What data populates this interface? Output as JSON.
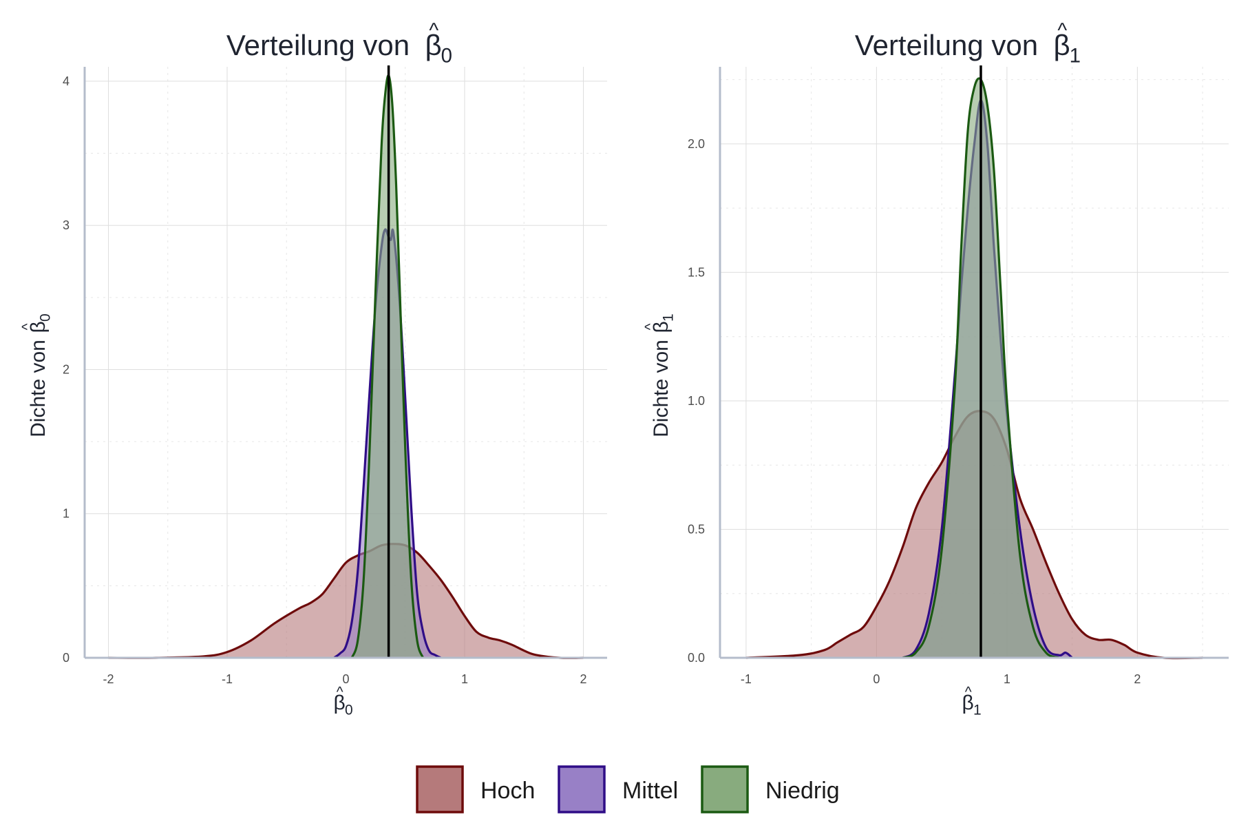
{
  "legend": {
    "items": [
      {
        "label": "Hoch",
        "fill": "#b57a7b",
        "stroke": "#6e0b0b"
      },
      {
        "label": "Mittel",
        "fill": "#9880c6",
        "stroke": "#2f0d87"
      },
      {
        "label": "Niedrig",
        "fill": "#88ab7e",
        "stroke": "#1b5a12"
      }
    ]
  },
  "chart_data": [
    {
      "type": "area",
      "title": "Verteilung von β̂0",
      "title_text": "Verteilung von ",
      "xlabel": "β̂0",
      "ylabel": "Dichte von β̂0",
      "ylabel_text": "Dichte von ",
      "symbol_subscript": "0",
      "xlim": [
        -2.2,
        2.2
      ],
      "ylim": [
        0,
        4.1
      ],
      "xticks": [
        -2,
        -1,
        0,
        1,
        2
      ],
      "xtick_labels": [
        "-2",
        "-1",
        "0",
        "1",
        "2"
      ],
      "yticks": [
        0,
        1,
        2,
        3,
        4
      ],
      "ytick_labels": [
        "0",
        "1",
        "2",
        "3",
        "4"
      ],
      "grid": true,
      "vline": 0.36,
      "series": [
        {
          "name": "Hoch",
          "x": [
            -2.0,
            -1.6,
            -1.2,
            -1.0,
            -0.8,
            -0.6,
            -0.4,
            -0.3,
            -0.2,
            -0.1,
            0.0,
            0.1,
            0.2,
            0.3,
            0.4,
            0.5,
            0.6,
            0.7,
            0.8,
            0.9,
            1.0,
            1.1,
            1.2,
            1.3,
            1.4,
            1.5,
            1.6,
            1.8,
            2.0
          ],
          "y": [
            0.0,
            0.0,
            0.01,
            0.04,
            0.12,
            0.24,
            0.34,
            0.38,
            0.44,
            0.55,
            0.66,
            0.71,
            0.74,
            0.78,
            0.79,
            0.78,
            0.73,
            0.64,
            0.54,
            0.42,
            0.29,
            0.18,
            0.14,
            0.12,
            0.09,
            0.05,
            0.02,
            0.0,
            0.0
          ]
        },
        {
          "name": "Mittel",
          "x": [
            -0.1,
            -0.05,
            0.0,
            0.05,
            0.1,
            0.15,
            0.2,
            0.25,
            0.3,
            0.33,
            0.36,
            0.38,
            0.4,
            0.45,
            0.5,
            0.55,
            0.6,
            0.65,
            0.7,
            0.75,
            0.8
          ],
          "y": [
            0.0,
            0.03,
            0.08,
            0.25,
            0.6,
            1.2,
            1.85,
            2.45,
            2.85,
            2.97,
            2.92,
            2.9,
            2.95,
            2.5,
            1.8,
            1.05,
            0.45,
            0.18,
            0.05,
            0.02,
            0.0
          ]
        },
        {
          "name": "Niedrig",
          "x": [
            0.05,
            0.1,
            0.15,
            0.2,
            0.25,
            0.3,
            0.33,
            0.36,
            0.39,
            0.42,
            0.45,
            0.5,
            0.55,
            0.6,
            0.65
          ],
          "y": [
            0.0,
            0.12,
            0.55,
            1.45,
            2.55,
            3.55,
            3.9,
            4.04,
            3.85,
            3.35,
            2.65,
            1.45,
            0.55,
            0.12,
            0.0
          ]
        }
      ]
    },
    {
      "type": "area",
      "title": "Verteilung von β̂1",
      "title_text": "Verteilung von ",
      "xlabel": "β̂1",
      "ylabel": "Dichte von β̂1",
      "ylabel_text": "Dichte von ",
      "symbol_subscript": "1",
      "xlim": [
        -1.2,
        2.7
      ],
      "ylim": [
        0,
        2.3
      ],
      "xticks": [
        -1,
        0,
        1,
        2
      ],
      "xtick_labels": [
        "-1",
        "0",
        "1",
        "2"
      ],
      "yticks": [
        0.0,
        0.5,
        1.0,
        1.5,
        2.0
      ],
      "ytick_labels": [
        "0.0",
        "0.5",
        "1.0",
        "1.5",
        "2.0"
      ],
      "grid": true,
      "vline": 0.8,
      "series": [
        {
          "name": "Hoch",
          "x": [
            -1.0,
            -0.6,
            -0.4,
            -0.3,
            -0.2,
            -0.1,
            0.0,
            0.1,
            0.2,
            0.3,
            0.4,
            0.5,
            0.6,
            0.7,
            0.8,
            0.9,
            1.0,
            1.1,
            1.2,
            1.3,
            1.4,
            1.5,
            1.6,
            1.7,
            1.8,
            1.9,
            2.0,
            2.2,
            2.5
          ],
          "y": [
            0.0,
            0.01,
            0.03,
            0.06,
            0.09,
            0.12,
            0.2,
            0.3,
            0.43,
            0.58,
            0.68,
            0.76,
            0.86,
            0.94,
            0.96,
            0.93,
            0.81,
            0.62,
            0.5,
            0.37,
            0.25,
            0.15,
            0.09,
            0.07,
            0.07,
            0.05,
            0.02,
            0.0,
            0.0
          ]
        },
        {
          "name": "Mittel",
          "x": [
            0.2,
            0.3,
            0.4,
            0.5,
            0.6,
            0.65,
            0.7,
            0.75,
            0.8,
            0.85,
            0.9,
            0.95,
            1.0,
            1.1,
            1.2,
            1.3,
            1.4,
            1.45,
            1.5
          ],
          "y": [
            0.0,
            0.03,
            0.17,
            0.5,
            1.1,
            1.45,
            1.75,
            2.0,
            2.17,
            2.0,
            1.6,
            1.25,
            0.95,
            0.5,
            0.2,
            0.04,
            0.01,
            0.02,
            0.0
          ]
        },
        {
          "name": "Niedrig",
          "x": [
            0.2,
            0.3,
            0.4,
            0.5,
            0.6,
            0.65,
            0.7,
            0.75,
            0.8,
            0.85,
            0.9,
            0.95,
            1.0,
            1.1,
            1.2,
            1.3,
            1.4
          ],
          "y": [
            0.0,
            0.02,
            0.12,
            0.42,
            1.05,
            1.6,
            2.05,
            2.22,
            2.25,
            2.15,
            1.9,
            1.45,
            1.0,
            0.4,
            0.12,
            0.02,
            0.0
          ]
        }
      ]
    }
  ]
}
